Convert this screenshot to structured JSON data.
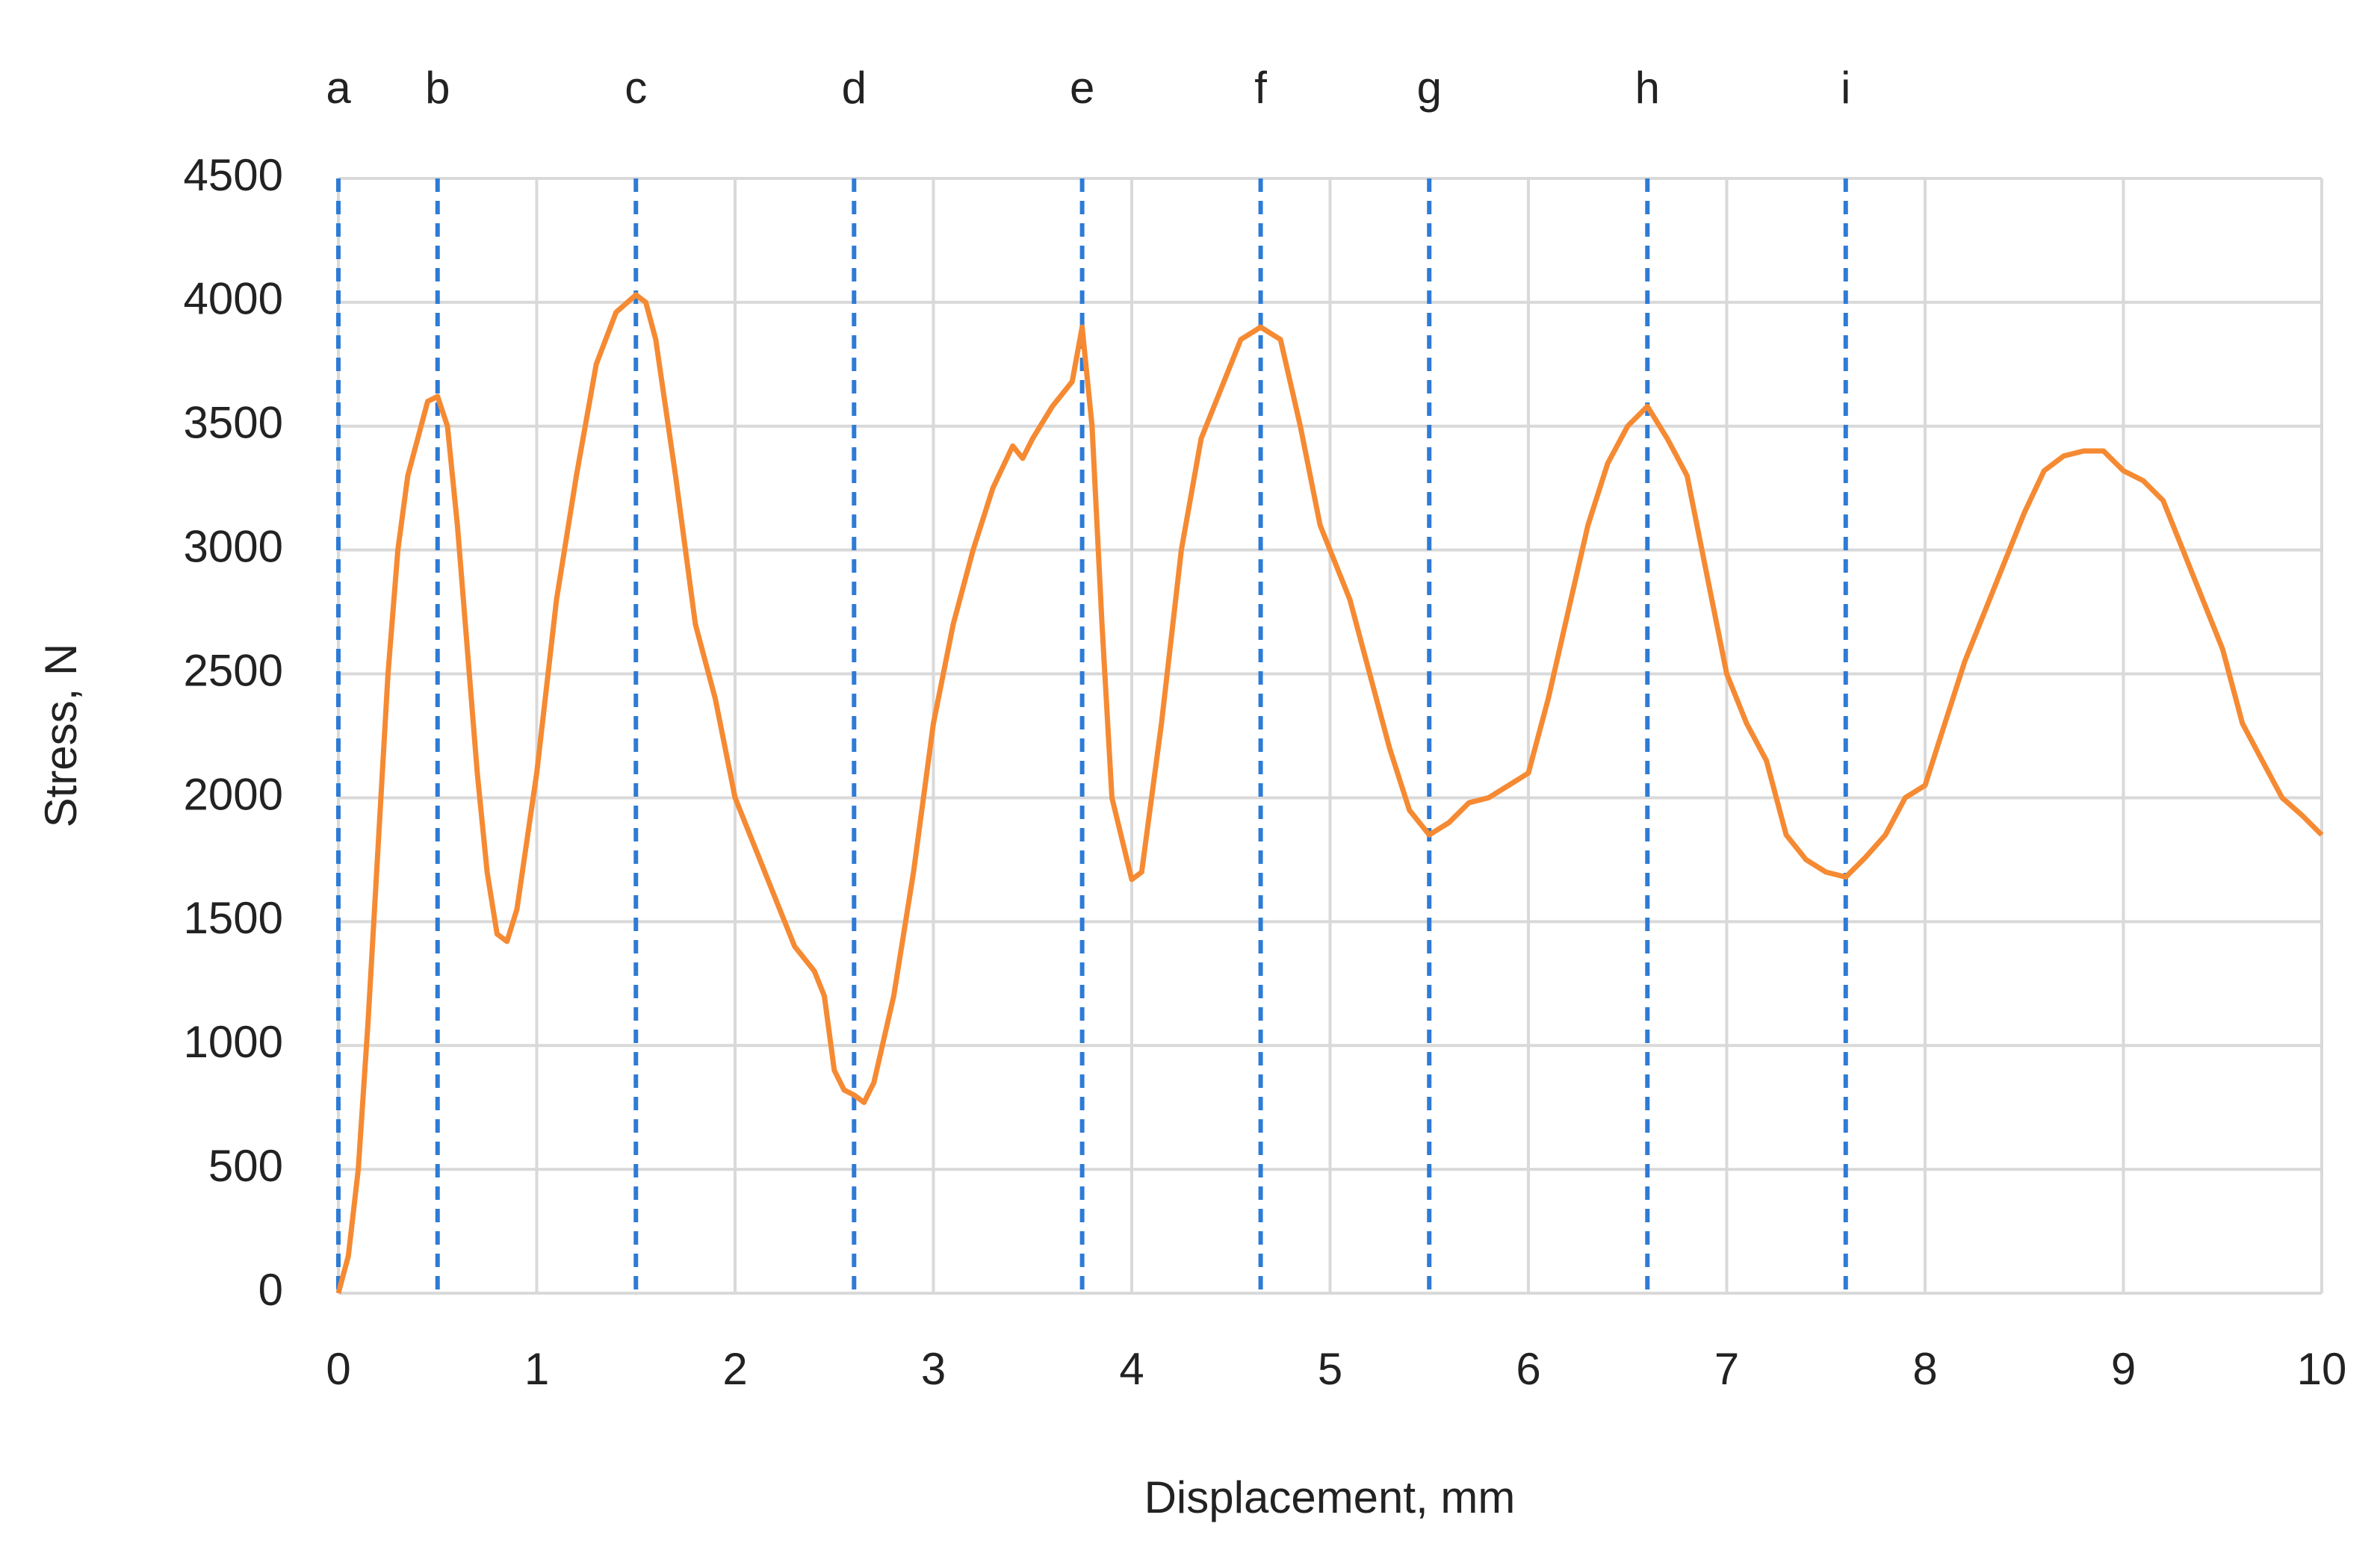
{
  "chart_data": {
    "type": "line",
    "xlabel": "Displacement, mm",
    "ylabel": "Stress, N",
    "x": [
      0,
      0.05,
      0.1,
      0.15,
      0.2,
      0.25,
      0.3,
      0.35,
      0.4,
      0.45,
      0.5,
      0.55,
      0.6,
      0.65,
      0.7,
      0.75,
      0.8,
      0.85,
      0.9,
      1.0,
      1.1,
      1.2,
      1.3,
      1.4,
      1.5,
      1.55,
      1.6,
      1.7,
      1.8,
      1.9,
      2.0,
      2.1,
      2.2,
      2.3,
      2.4,
      2.45,
      2.5,
      2.55,
      2.6,
      2.65,
      2.7,
      2.8,
      2.9,
      3.0,
      3.1,
      3.2,
      3.3,
      3.4,
      3.45,
      3.5,
      3.6,
      3.7,
      3.75,
      3.8,
      3.85,
      3.9,
      4.0,
      4.05,
      4.15,
      4.25,
      4.35,
      4.45,
      4.55,
      4.65,
      4.75,
      4.85,
      4.95,
      5.1,
      5.2,
      5.3,
      5.4,
      5.5,
      5.6,
      5.7,
      5.8,
      5.9,
      6.0,
      6.1,
      6.2,
      6.3,
      6.4,
      6.5,
      6.6,
      6.7,
      6.8,
      6.9,
      7.0,
      7.1,
      7.2,
      7.3,
      7.4,
      7.5,
      7.6,
      7.7,
      7.8,
      7.9,
      8.0,
      8.1,
      8.2,
      8.3,
      8.4,
      8.5,
      8.6,
      8.7,
      8.8,
      8.9,
      9.0,
      9.1,
      9.2,
      9.3,
      9.4,
      9.5,
      9.6,
      9.7,
      9.8,
      9.9,
      10
    ],
    "values": [
      0,
      150,
      500,
      1100,
      1800,
      2500,
      3000,
      3300,
      3450,
      3600,
      3620,
      3500,
      3100,
      2600,
      2100,
      1700,
      1450,
      1420,
      1550,
      2100,
      2800,
      3300,
      3750,
      3960,
      4030,
      4000,
      3850,
      3300,
      2700,
      2400,
      2000,
      1800,
      1600,
      1400,
      1300,
      1200,
      900,
      820,
      800,
      770,
      850,
      1200,
      1700,
      2300,
      2700,
      3000,
      3250,
      3420,
      3370,
      3450,
      3580,
      3680,
      3900,
      3500,
      2700,
      2000,
      1670,
      1700,
      2300,
      3000,
      3450,
      3650,
      3850,
      3900,
      3850,
      3500,
      3100,
      2800,
      2500,
      2200,
      1950,
      1850,
      1900,
      1980,
      2000,
      2050,
      2100,
      2400,
      2750,
      3100,
      3350,
      3500,
      3580,
      3450,
      3300,
      2900,
      2500,
      2300,
      2150,
      1850,
      1750,
      1700,
      1680,
      1760,
      1850,
      2000,
      2050,
      2300,
      2550,
      2750,
      2950,
      3150,
      3320,
      3380,
      3400,
      3400,
      3320,
      3280,
      3200,
      3000,
      2800,
      2600,
      2300,
      2150,
      2000,
      1930,
      1850
    ],
    "color": "#f58a33",
    "xlim": [
      0,
      10
    ],
    "xticks": [
      0,
      1,
      2,
      3,
      4,
      5,
      6,
      7,
      8,
      9,
      10
    ],
    "ylim": [
      0,
      4500
    ],
    "yticks": [
      0,
      500,
      1000,
      1500,
      2000,
      2500,
      3000,
      3500,
      4000,
      4500
    ],
    "grid": true,
    "markers": [
      {
        "label": "a",
        "x": 0
      },
      {
        "label": "b",
        "x": 0.5
      },
      {
        "label": "c",
        "x": 1.5
      },
      {
        "label": "d",
        "x": 2.6
      },
      {
        "label": "e",
        "x": 3.75
      },
      {
        "label": "f",
        "x": 4.65
      },
      {
        "label": "g",
        "x": 5.5
      },
      {
        "label": "h",
        "x": 6.6
      },
      {
        "label": "i",
        "x": 7.6
      }
    ],
    "marker_color": "#2e7bd6"
  }
}
